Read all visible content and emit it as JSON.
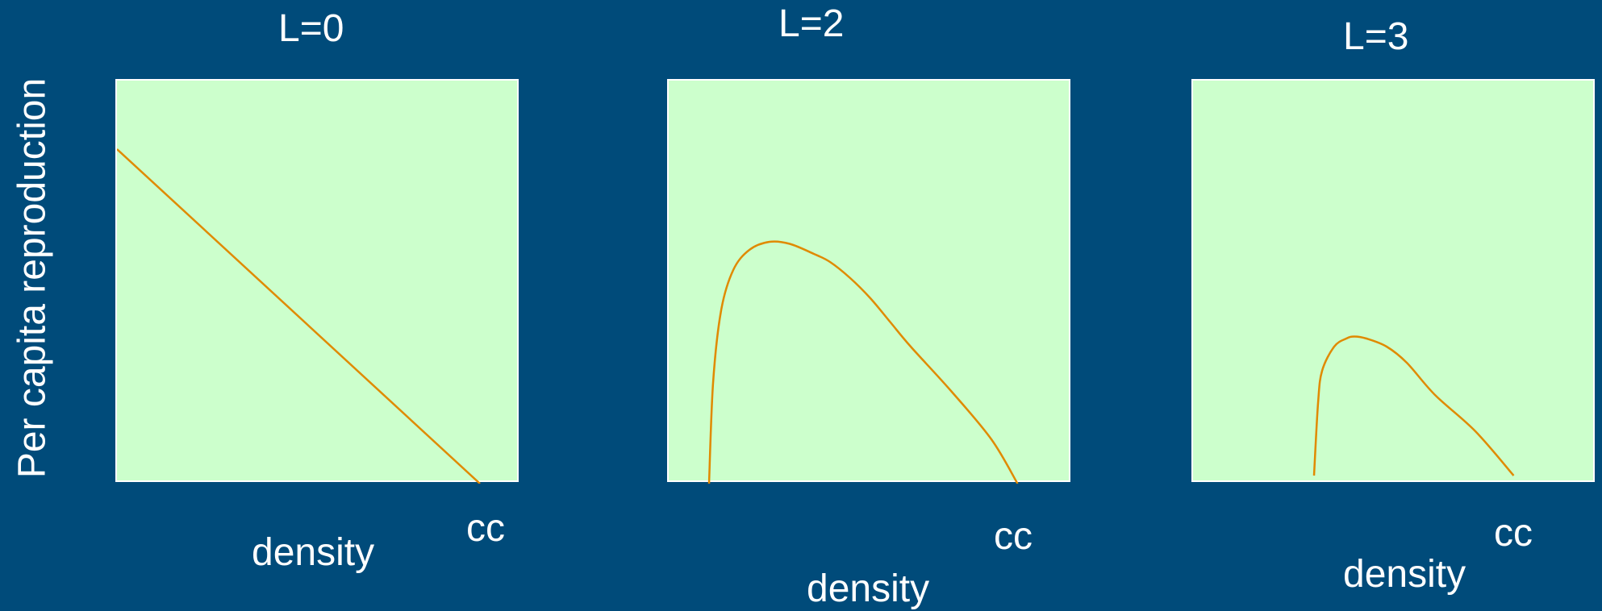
{
  "ylabel": "Per capita reproduction",
  "colors": {
    "background": "#004b7a",
    "plot_area": "#ccffcc",
    "curve": "#e08a00",
    "text": "#ffffff"
  },
  "chart_data": [
    {
      "type": "line",
      "title": "L=0",
      "xlabel": "density",
      "x_annotation": "cc",
      "grid": false,
      "xlim": [
        0,
        1
      ],
      "ylim": [
        0,
        1
      ],
      "series": [
        {
          "x": [
            0.0,
            0.9
          ],
          "y": [
            0.83,
            0.0
          ]
        }
      ]
    },
    {
      "type": "line",
      "title": "L=2",
      "xlabel": "density",
      "x_annotation": "cc",
      "grid": false,
      "xlim": [
        0,
        1
      ],
      "ylim": [
        0,
        1
      ],
      "series": [
        {
          "x": [
            0.1,
            0.11,
            0.13,
            0.16,
            0.2,
            0.25,
            0.3,
            0.36,
            0.4,
            0.45,
            0.5,
            0.55,
            0.6,
            0.7,
            0.8,
            0.865
          ],
          "y": [
            0.0,
            0.25,
            0.43,
            0.53,
            0.58,
            0.6,
            0.595,
            0.57,
            0.55,
            0.51,
            0.46,
            0.4,
            0.34,
            0.23,
            0.11,
            0.0
          ]
        }
      ]
    },
    {
      "type": "line",
      "title": "L=3",
      "xlabel": "density",
      "x_annotation": "cc",
      "grid": false,
      "xlim": [
        0,
        1
      ],
      "ylim": [
        0,
        1
      ],
      "series": [
        {
          "x": [
            0.3,
            0.31,
            0.32,
            0.35,
            0.38,
            0.4,
            0.43,
            0.48,
            0.53,
            0.6,
            0.7,
            0.795
          ],
          "y": [
            0.02,
            0.2,
            0.28,
            0.34,
            0.36,
            0.365,
            0.36,
            0.34,
            0.3,
            0.22,
            0.13,
            0.02
          ]
        }
      ]
    }
  ]
}
